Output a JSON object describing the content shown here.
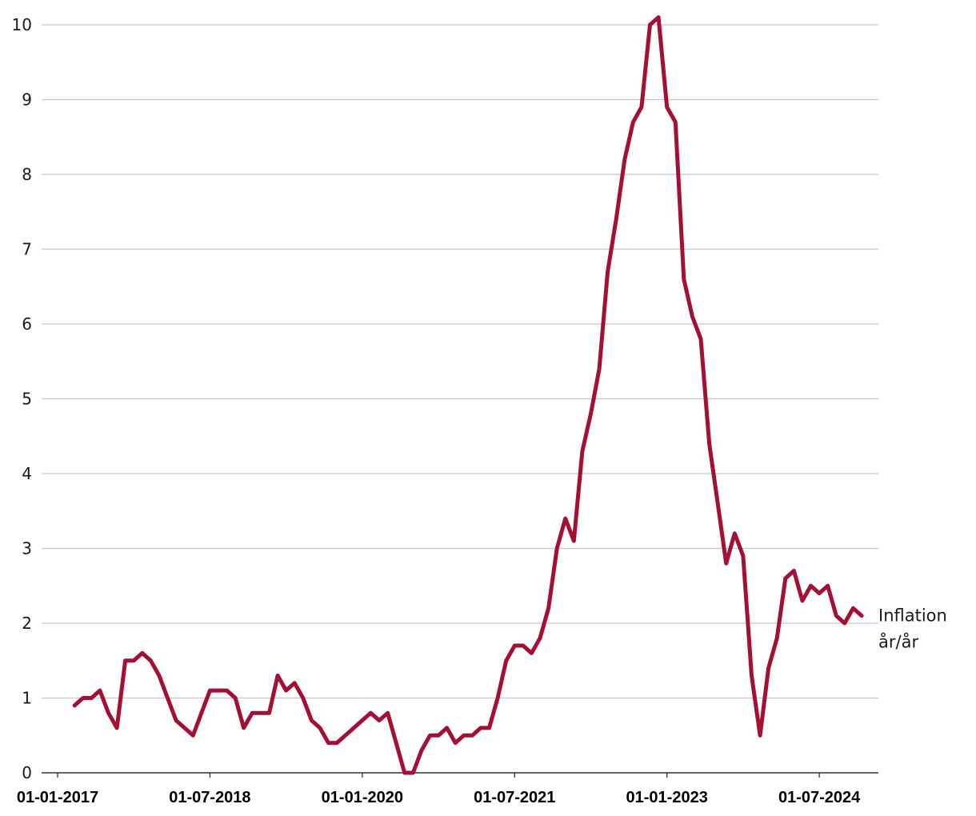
{
  "colors": {
    "series": "#a50f34",
    "grid": "#c8c8c8",
    "axis": "#333333"
  },
  "chart_data": {
    "type": "line",
    "title": "",
    "xlabel": "",
    "ylabel": "",
    "ylim": [
      0,
      10
    ],
    "xlim": [
      "2017-01",
      "2024-12"
    ],
    "grid": true,
    "yticks": [
      "0",
      "1",
      "2",
      "3",
      "4",
      "5",
      "6",
      "7",
      "8",
      "9",
      "10"
    ],
    "xticks": [
      {
        "date": "2017-01",
        "label": "01-01-2017"
      },
      {
        "date": "2018-07",
        "label": "01-07-2018"
      },
      {
        "date": "2020-01",
        "label": "01-01-2020"
      },
      {
        "date": "2021-07",
        "label": "01-07-2021"
      },
      {
        "date": "2023-01",
        "label": "01-01-2023"
      },
      {
        "date": "2024-07",
        "label": "01-07-2024"
      }
    ],
    "series": [
      {
        "name": "Inflation år/år",
        "name_lines": [
          "Inflation",
          "år/år"
        ],
        "x": [
          "2017-03",
          "2017-04",
          "2017-05",
          "2017-06",
          "2017-07",
          "2017-08",
          "2017-09",
          "2017-10",
          "2017-11",
          "2017-12",
          "2018-01",
          "2018-02",
          "2018-03",
          "2018-04",
          "2018-05",
          "2018-06",
          "2018-07",
          "2018-08",
          "2018-09",
          "2018-10",
          "2018-11",
          "2018-12",
          "2019-01",
          "2019-02",
          "2019-03",
          "2019-04",
          "2019-05",
          "2019-06",
          "2019-07",
          "2019-08",
          "2019-09",
          "2019-10",
          "2019-11",
          "2019-12",
          "2020-01",
          "2020-02",
          "2020-03",
          "2020-04",
          "2020-05",
          "2020-06",
          "2020-07",
          "2020-08",
          "2020-09",
          "2020-10",
          "2020-11",
          "2020-12",
          "2021-01",
          "2021-02",
          "2021-03",
          "2021-04",
          "2021-05",
          "2021-06",
          "2021-07",
          "2021-08",
          "2021-09",
          "2021-10",
          "2021-11",
          "2021-12",
          "2022-01",
          "2022-02",
          "2022-03",
          "2022-04",
          "2022-05",
          "2022-06",
          "2022-07",
          "2022-08",
          "2022-09",
          "2022-10",
          "2022-11",
          "2022-12",
          "2023-01",
          "2023-02",
          "2023-03",
          "2023-04",
          "2023-05",
          "2023-06",
          "2023-07",
          "2023-08",
          "2023-09",
          "2023-10",
          "2023-11",
          "2023-12",
          "2024-01",
          "2024-02",
          "2024-03",
          "2024-04",
          "2024-05",
          "2024-06",
          "2024-07",
          "2024-08",
          "2024-09",
          "2024-10",
          "2024-11",
          "2024-12"
        ],
        "values": [
          0.9,
          1.0,
          1.0,
          1.1,
          0.8,
          0.6,
          1.5,
          1.5,
          1.6,
          1.5,
          1.3,
          1.0,
          0.7,
          0.6,
          0.5,
          0.8,
          1.1,
          1.1,
          1.1,
          1.0,
          0.6,
          0.8,
          0.8,
          0.8,
          1.3,
          1.1,
          1.2,
          1.0,
          0.7,
          0.6,
          0.4,
          0.4,
          0.5,
          0.6,
          0.7,
          0.8,
          0.7,
          0.8,
          0.4,
          0.0,
          0.0,
          0.3,
          0.5,
          0.5,
          0.6,
          0.4,
          0.5,
          0.5,
          0.6,
          0.6,
          1.0,
          1.5,
          1.7,
          1.7,
          1.6,
          1.8,
          2.2,
          3.0,
          3.4,
          3.1,
          4.3,
          4.8,
          5.4,
          6.7,
          7.4,
          8.2,
          8.7,
          8.9,
          10.0,
          10.1,
          8.9,
          8.7,
          6.6,
          6.1,
          5.8,
          4.4,
          3.6,
          2.8,
          3.2,
          2.9,
          1.3,
          0.5,
          1.4,
          1.8,
          2.6,
          2.7,
          2.3,
          2.5,
          2.4,
          2.5,
          2.1,
          2.0,
          2.2,
          2.1
        ]
      }
    ]
  }
}
